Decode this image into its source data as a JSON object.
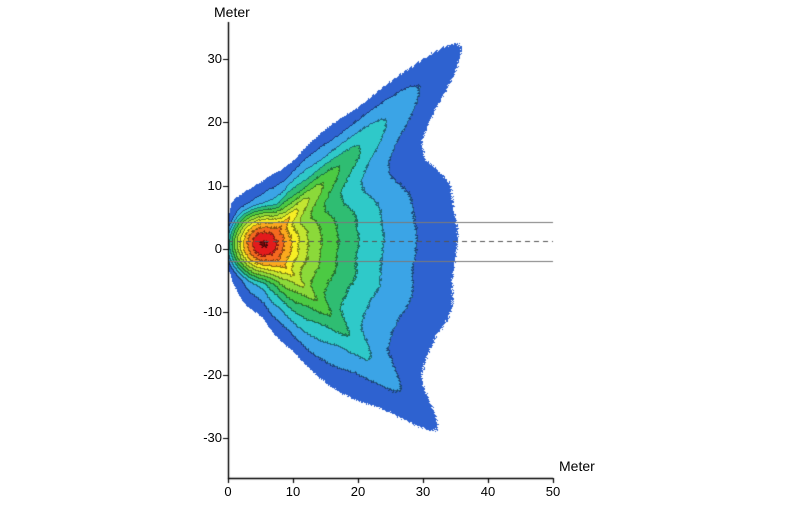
{
  "page": {
    "background_color": "#ffffff"
  },
  "chart_data": {
    "type": "contour",
    "title": "",
    "xlabel": "Meter",
    "ylabel": "Meter",
    "xlim": [
      0,
      50
    ],
    "ylim": [
      -36.3,
      35.9
    ],
    "x_ticks": [
      0,
      10,
      20,
      30,
      40,
      50
    ],
    "y_ticks": [
      -30,
      -20,
      -10,
      0,
      10,
      20,
      30
    ],
    "grid": false,
    "legend": "none",
    "axis_color": "#000000",
    "tick_label_color": "#000000",
    "source": {
      "x": 5.5,
      "y": 0.8
    },
    "contour_levels": {
      "thresholds": [
        0.012,
        0.055,
        0.09,
        0.13,
        0.175,
        0.23,
        0.3,
        0.385,
        0.49,
        0.62,
        0.79,
        1.0
      ],
      "colors": [
        "#6e0a0c",
        "#e31b1c",
        "#f4681f",
        "#fba91e",
        "#f7ee24",
        "#c3e531",
        "#8bd93a",
        "#4cca43",
        "#2fbd72",
        "#2fc9c9",
        "#3ba4e6",
        "#2e62d0"
      ],
      "line_darken": 0.58
    },
    "boundary_polar": [
      {
        "deg": -180,
        "r": 5.5
      },
      {
        "deg": -150,
        "r": 6.2
      },
      {
        "deg": -123,
        "r": 8.2
      },
      {
        "deg": -100,
        "r": 10.5
      },
      {
        "deg": -90,
        "r": 12.0
      },
      {
        "deg": -75,
        "r": 17.5
      },
      {
        "deg": -62,
        "r": 27.0
      },
      {
        "deg": -55,
        "r": 32.0
      },
      {
        "deg": -48,
        "r": 41.5
      },
      {
        "deg": -42,
        "r": 32.0
      },
      {
        "deg": -36,
        "r": 30.5
      },
      {
        "deg": -28,
        "r": 30.0
      },
      {
        "deg": -20,
        "r": 30.5
      },
      {
        "deg": -10,
        "r": 30.0
      },
      {
        "deg": 0,
        "r": 29.5
      },
      {
        "deg": 10,
        "r": 29.5
      },
      {
        "deg": 18,
        "r": 30.0
      },
      {
        "deg": 28,
        "r": 28.5
      },
      {
        "deg": 34,
        "r": 29.5
      },
      {
        "deg": 39,
        "r": 33.5
      },
      {
        "deg": 43,
        "r": 40.0
      },
      {
        "deg": 47,
        "r": 44.5
      },
      {
        "deg": 51,
        "r": 36.0
      },
      {
        "deg": 56,
        "r": 26.0
      },
      {
        "deg": 63,
        "r": 20.0
      },
      {
        "deg": 71,
        "r": 14.0
      },
      {
        "deg": 80,
        "r": 11.5
      },
      {
        "deg": 90,
        "r": 10.0
      },
      {
        "deg": 105,
        "r": 9.0
      },
      {
        "deg": 122,
        "r": 8.5
      },
      {
        "deg": 150,
        "r": 6.2
      },
      {
        "deg": 180,
        "r": 5.5
      }
    ],
    "shape": {
      "round_radius": 38,
      "blend_range": 7,
      "ripple_amp": 0.018,
      "ripple_f1": 9,
      "ripple_f2": 17,
      "dither": 0.016
    },
    "reference_lines": [
      {
        "y": 4.3,
        "style": "solid",
        "color": "#7a7a7a"
      },
      {
        "y": 1.2,
        "style": "dashed",
        "color": "#555555"
      },
      {
        "y": -1.9,
        "style": "solid",
        "color": "#7a7a7a"
      }
    ]
  }
}
